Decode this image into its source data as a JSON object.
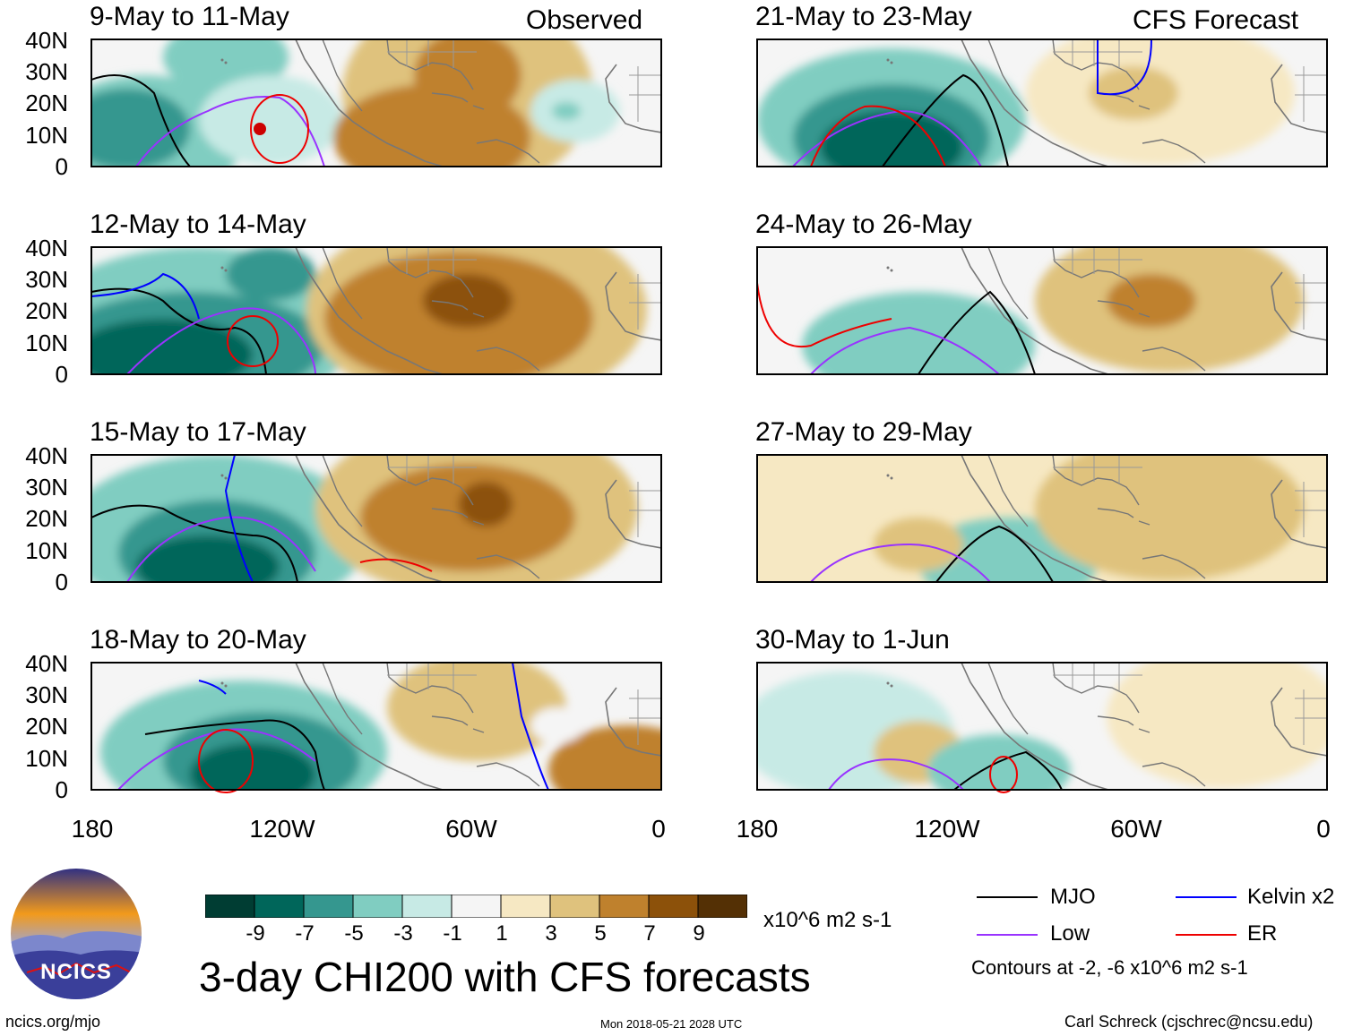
{
  "header": {
    "observed_label": "Observed",
    "forecast_label": "CFS Forecast"
  },
  "panels": {
    "observed": [
      {
        "period": "9-May to 11-May"
      },
      {
        "period": "12-May to 14-May"
      },
      {
        "period": "15-May to 17-May"
      },
      {
        "period": "18-May to 20-May"
      }
    ],
    "forecast": [
      {
        "period": "21-May to 23-May"
      },
      {
        "period": "24-May to 26-May"
      },
      {
        "period": "27-May to 29-May"
      },
      {
        "period": "30-May to 1-Jun"
      }
    ]
  },
  "axes": {
    "lat_labels": [
      "40N",
      "30N",
      "20N",
      "10N",
      "0"
    ],
    "lon_labels": [
      "180",
      "120W",
      "60W",
      "0"
    ]
  },
  "colorbar": {
    "labels": [
      "-9",
      "-7",
      "-5",
      "-3",
      "-1",
      "1",
      "3",
      "5",
      "7",
      "9"
    ],
    "units": "x10^6 m2 s-1",
    "colors": [
      "#003d33",
      "#00665a",
      "#35978f",
      "#80cdc1",
      "#c7eae5",
      "#f5f5f5",
      "#f6e8c3",
      "#dfc27d",
      "#bf812d",
      "#8c510a",
      "#543005"
    ]
  },
  "legend": {
    "items": [
      {
        "label": "MJO",
        "color": "#000000"
      },
      {
        "label": "Kelvin x2",
        "color": "#0000ff"
      },
      {
        "label": "Low",
        "color": "#9933ff"
      },
      {
        "label": "ER",
        "color": "#ee0000"
      }
    ],
    "contours_note": "Contours at -2, -6 x10^6 m2 s-1"
  },
  "footer": {
    "main_title": "3-day CHI200 with CFS forecasts",
    "org_url": "ncics.org/mjo",
    "timestamp": "Mon 2018-05-21 2028 UTC",
    "credit": "Carl Schreck (cjschrec@ncsu.edu)",
    "logo_text": "NCICS"
  }
}
